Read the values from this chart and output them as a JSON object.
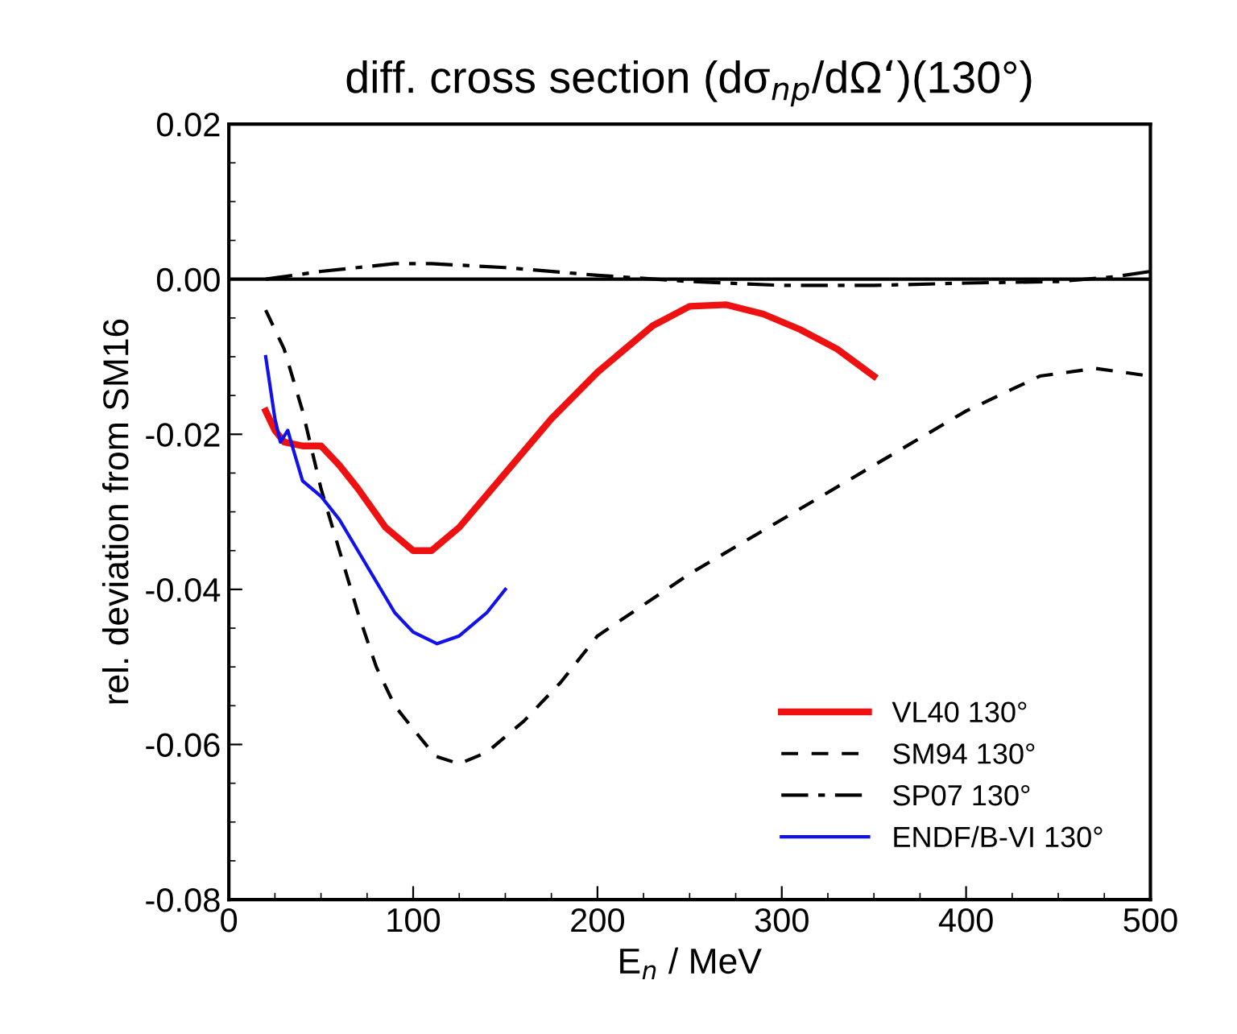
{
  "chart_data": {
    "type": "line",
    "title": "diff. cross section (dσ$_{np}$/dΩ‘)(130°)",
    "xlabel": "E$_{n}$ / MeV",
    "ylabel": "rel. deviation from SM16",
    "xlim": [
      0,
      500
    ],
    "xticks": [
      0,
      100,
      200,
      300,
      400,
      500
    ],
    "ylim": [
      -0.08,
      0.02
    ],
    "yticks": [
      {
        "value": -0.08,
        "label": "-0.08"
      },
      {
        "value": -0.06,
        "label": "-0.06"
      },
      {
        "value": -0.04,
        "label": "-0.04"
      },
      {
        "value": -0.02,
        "label": "-0.02"
      },
      {
        "value": 0,
        "label": "0.00"
      },
      {
        "value": 0.02,
        "label": "0.02"
      }
    ],
    "grid": false,
    "legend": "bottom right",
    "ref_lines": [
      {
        "axis": "y",
        "value": 0,
        "color": "#000000",
        "line_style": "solid"
      }
    ],
    "series": [
      {
        "name": "VL40 130°",
        "color": "#ee1111",
        "line_style": "solid",
        "x": [
          20,
          25,
          30,
          40,
          50,
          60,
          70,
          85,
          100,
          110,
          125,
          150,
          175,
          200,
          230,
          250,
          270,
          290,
          310,
          330,
          350
        ],
        "values": [
          -0.017,
          -0.0195,
          -0.021,
          -0.0215,
          -0.0215,
          -0.024,
          -0.027,
          -0.032,
          -0.035,
          -0.035,
          -0.032,
          -0.025,
          -0.018,
          -0.012,
          -0.006,
          -0.0035,
          -0.0033,
          -0.0045,
          -0.0065,
          -0.009,
          -0.0125
        ]
      },
      {
        "name": "SM94 130°",
        "color": "#000000",
        "line_style": "dashed",
        "x": [
          20,
          30,
          40,
          50,
          60,
          70,
          80,
          90,
          100,
          112,
          125,
          140,
          160,
          180,
          200,
          250,
          300,
          350,
          400,
          440,
          470,
          500
        ],
        "values": [
          -0.004,
          -0.009,
          -0.017,
          -0.027,
          -0.035,
          -0.043,
          -0.05,
          -0.055,
          -0.058,
          -0.0615,
          -0.0625,
          -0.061,
          -0.057,
          -0.052,
          -0.046,
          -0.038,
          -0.031,
          -0.024,
          -0.017,
          -0.0125,
          -0.0115,
          -0.0125
        ]
      },
      {
        "name": "SP07 130°",
        "color": "#000000",
        "line_style": "dashdot",
        "x": [
          20,
          50,
          90,
          110,
          150,
          200,
          250,
          300,
          350,
          400,
          450,
          480,
          500
        ],
        "values": [
          0,
          0.001,
          0.002,
          0.002,
          0.0015,
          0.0005,
          -0.0003,
          -0.0008,
          -0.0008,
          -0.0005,
          -0.0003,
          0.0003,
          0.001
        ]
      },
      {
        "name": "ENDF/B-VI 130°",
        "color": "#1111ee",
        "line_style": "solid",
        "x": [
          20,
          25,
          28,
          32,
          35,
          40,
          50,
          60,
          70,
          80,
          90,
          100,
          113,
          125,
          140,
          150
        ],
        "values": [
          -0.01,
          -0.018,
          -0.021,
          -0.0195,
          -0.022,
          -0.026,
          -0.028,
          -0.031,
          -0.035,
          -0.039,
          -0.043,
          -0.0455,
          -0.047,
          -0.046,
          -0.043,
          -0.04
        ]
      }
    ]
  }
}
